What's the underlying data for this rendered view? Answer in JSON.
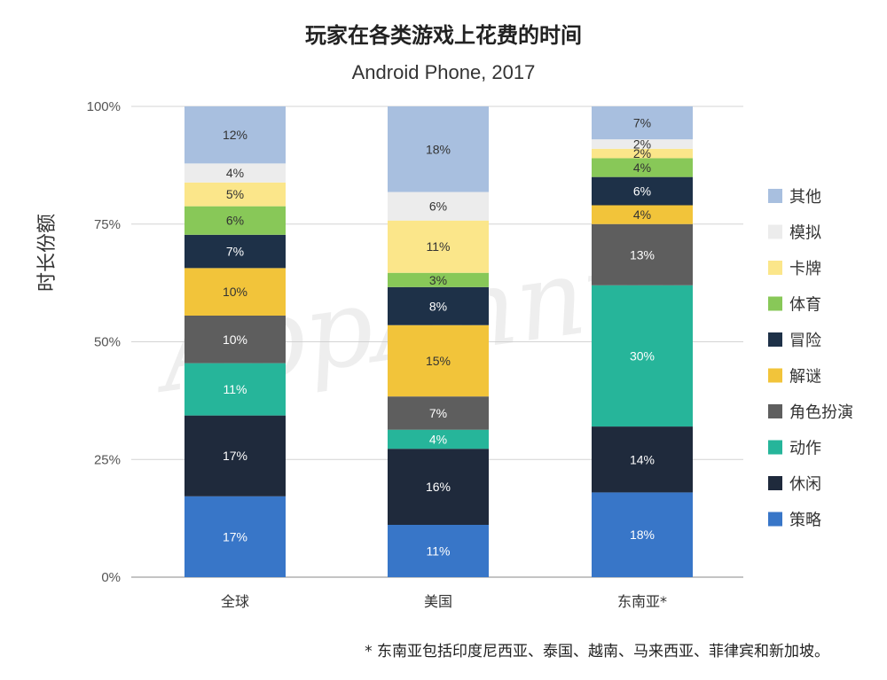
{
  "chart_data": {
    "type": "bar",
    "stacked": true,
    "title": "玩家在各类游戏上花费的时间",
    "subtitle": "Android Phone, 2017",
    "ylabel": "时长份额",
    "xlabel": "",
    "ylim": [
      0,
      100
    ],
    "yticks": [
      "0%",
      "25%",
      "50%",
      "75%",
      "100%"
    ],
    "categories": [
      "全球",
      "美国",
      "东南亚*"
    ],
    "series": [
      {
        "name": "策略",
        "color": "#3876c8",
        "values": [
          17,
          11,
          18
        ],
        "labels": [
          "17%",
          "11%",
          "18%"
        ]
      },
      {
        "name": "休闲",
        "color": "#1f2a3c",
        "values": [
          17,
          16,
          14
        ],
        "labels": [
          "17%",
          "16%",
          "14%"
        ]
      },
      {
        "name": "动作",
        "color": "#26b59a",
        "values": [
          11,
          4,
          30
        ],
        "labels": [
          "11%",
          "4%",
          "30%"
        ]
      },
      {
        "name": "角色扮演",
        "color": "#5e5e5e",
        "values": [
          10,
          7,
          13
        ],
        "labels": [
          "10%",
          "7%",
          "13%"
        ]
      },
      {
        "name": "解谜",
        "color": "#f2c43a",
        "values": [
          10,
          15,
          4
        ],
        "labels": [
          "10%",
          "15%",
          "4%"
        ]
      },
      {
        "name": "冒险",
        "color": "#1e3148",
        "values": [
          7,
          8,
          6
        ],
        "labels": [
          "7%",
          "8%",
          "6%"
        ]
      },
      {
        "name": "体育",
        "color": "#88c858",
        "values": [
          6,
          3,
          4
        ],
        "labels": [
          "6%",
          "3%",
          "4%"
        ]
      },
      {
        "name": "卡牌",
        "color": "#fbe68a",
        "values": [
          5,
          11,
          2
        ],
        "labels": [
          "5%",
          "11%",
          "2%"
        ]
      },
      {
        "name": "模拟",
        "color": "#ececec",
        "values": [
          4,
          6,
          2
        ],
        "labels": [
          "4%",
          "6%",
          "2%"
        ]
      },
      {
        "name": "其他",
        "color": "#a8bfdf",
        "values": [
          12,
          18,
          7
        ],
        "labels": [
          "12%",
          "18%",
          "7%"
        ]
      }
    ],
    "legend_order": [
      "其他",
      "模拟",
      "卡牌",
      "体育",
      "冒险",
      "解谜",
      "角色扮演",
      "动作",
      "休闲",
      "策略"
    ],
    "legend_position": "right"
  },
  "footnote": "* 东南亚包括印度尼西亚、泰国、越南、马来西亚、菲律宾和新加坡。",
  "watermark": "AppAnnie"
}
